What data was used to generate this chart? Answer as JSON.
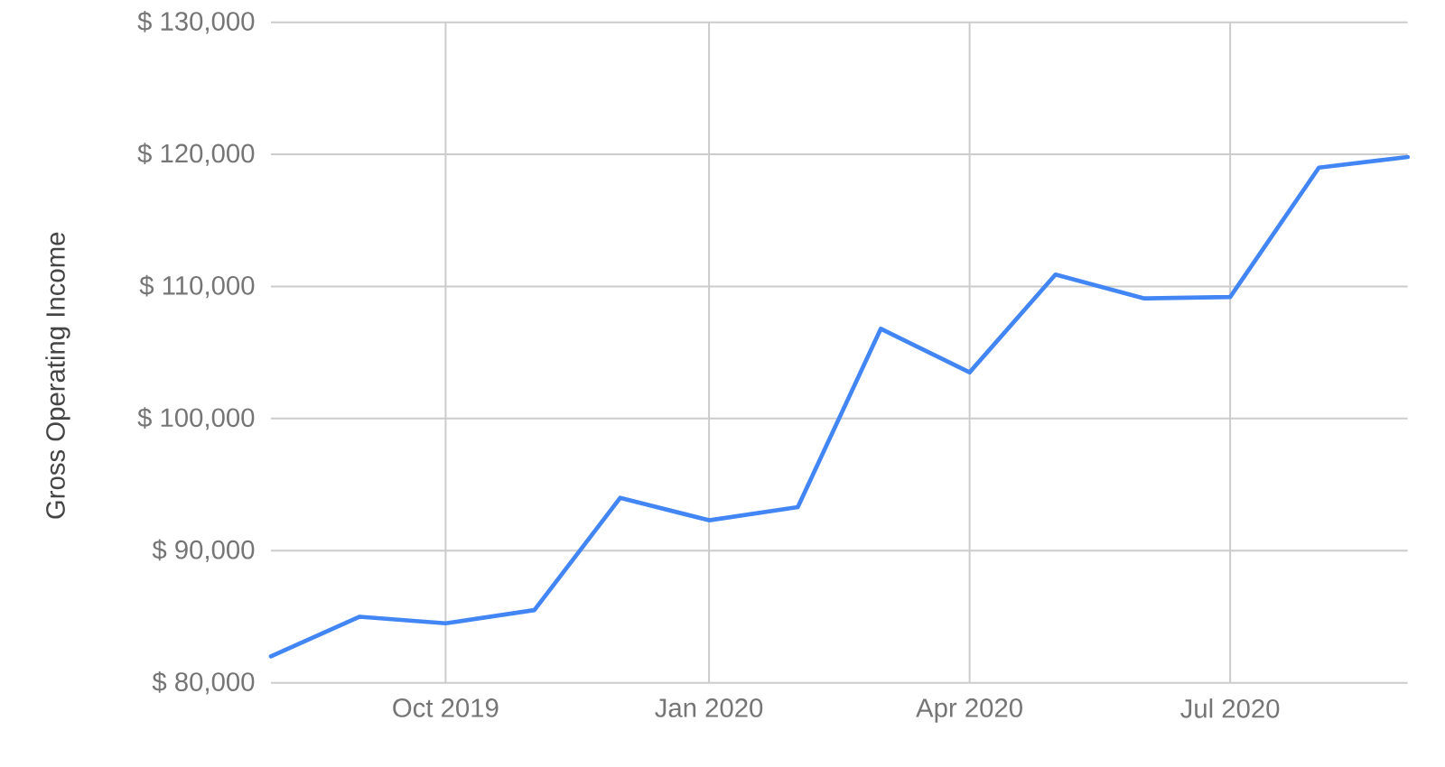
{
  "chart_data": {
    "type": "line",
    "ylabel": "Gross Operating Income",
    "x": [
      "2019-08",
      "2019-09",
      "2019-10",
      "2019-11",
      "2019-12",
      "2020-01",
      "2020-02",
      "2020-03",
      "2020-04",
      "2020-05",
      "2020-06",
      "2020-07",
      "2020-08",
      "2020-09"
    ],
    "values": [
      82000,
      85000,
      84500,
      85500,
      94000,
      92300,
      93300,
      106800,
      103500,
      110900,
      109100,
      109200,
      119000,
      119800
    ],
    "color": "#4285f4",
    "xlim": [
      "2019-08",
      "2020-09"
    ],
    "xticks": [
      {
        "value": "2019-10",
        "label": "Oct 2019"
      },
      {
        "value": "2020-01",
        "label": "Jan 2020"
      },
      {
        "value": "2020-04",
        "label": "Apr 2020"
      },
      {
        "value": "2020-07",
        "label": "Jul 2020"
      }
    ],
    "ylim": [
      80000,
      130000
    ],
    "yticks": [
      {
        "value": 80000,
        "label": "$ 80,000"
      },
      {
        "value": 90000,
        "label": "$ 90,000"
      },
      {
        "value": 100000,
        "label": "$ 100,000"
      },
      {
        "value": 110000,
        "label": "$ 110,000"
      },
      {
        "value": 120000,
        "label": "$ 120,000"
      },
      {
        "value": 130000,
        "label": "$ 130,000"
      }
    ],
    "grid": true
  }
}
